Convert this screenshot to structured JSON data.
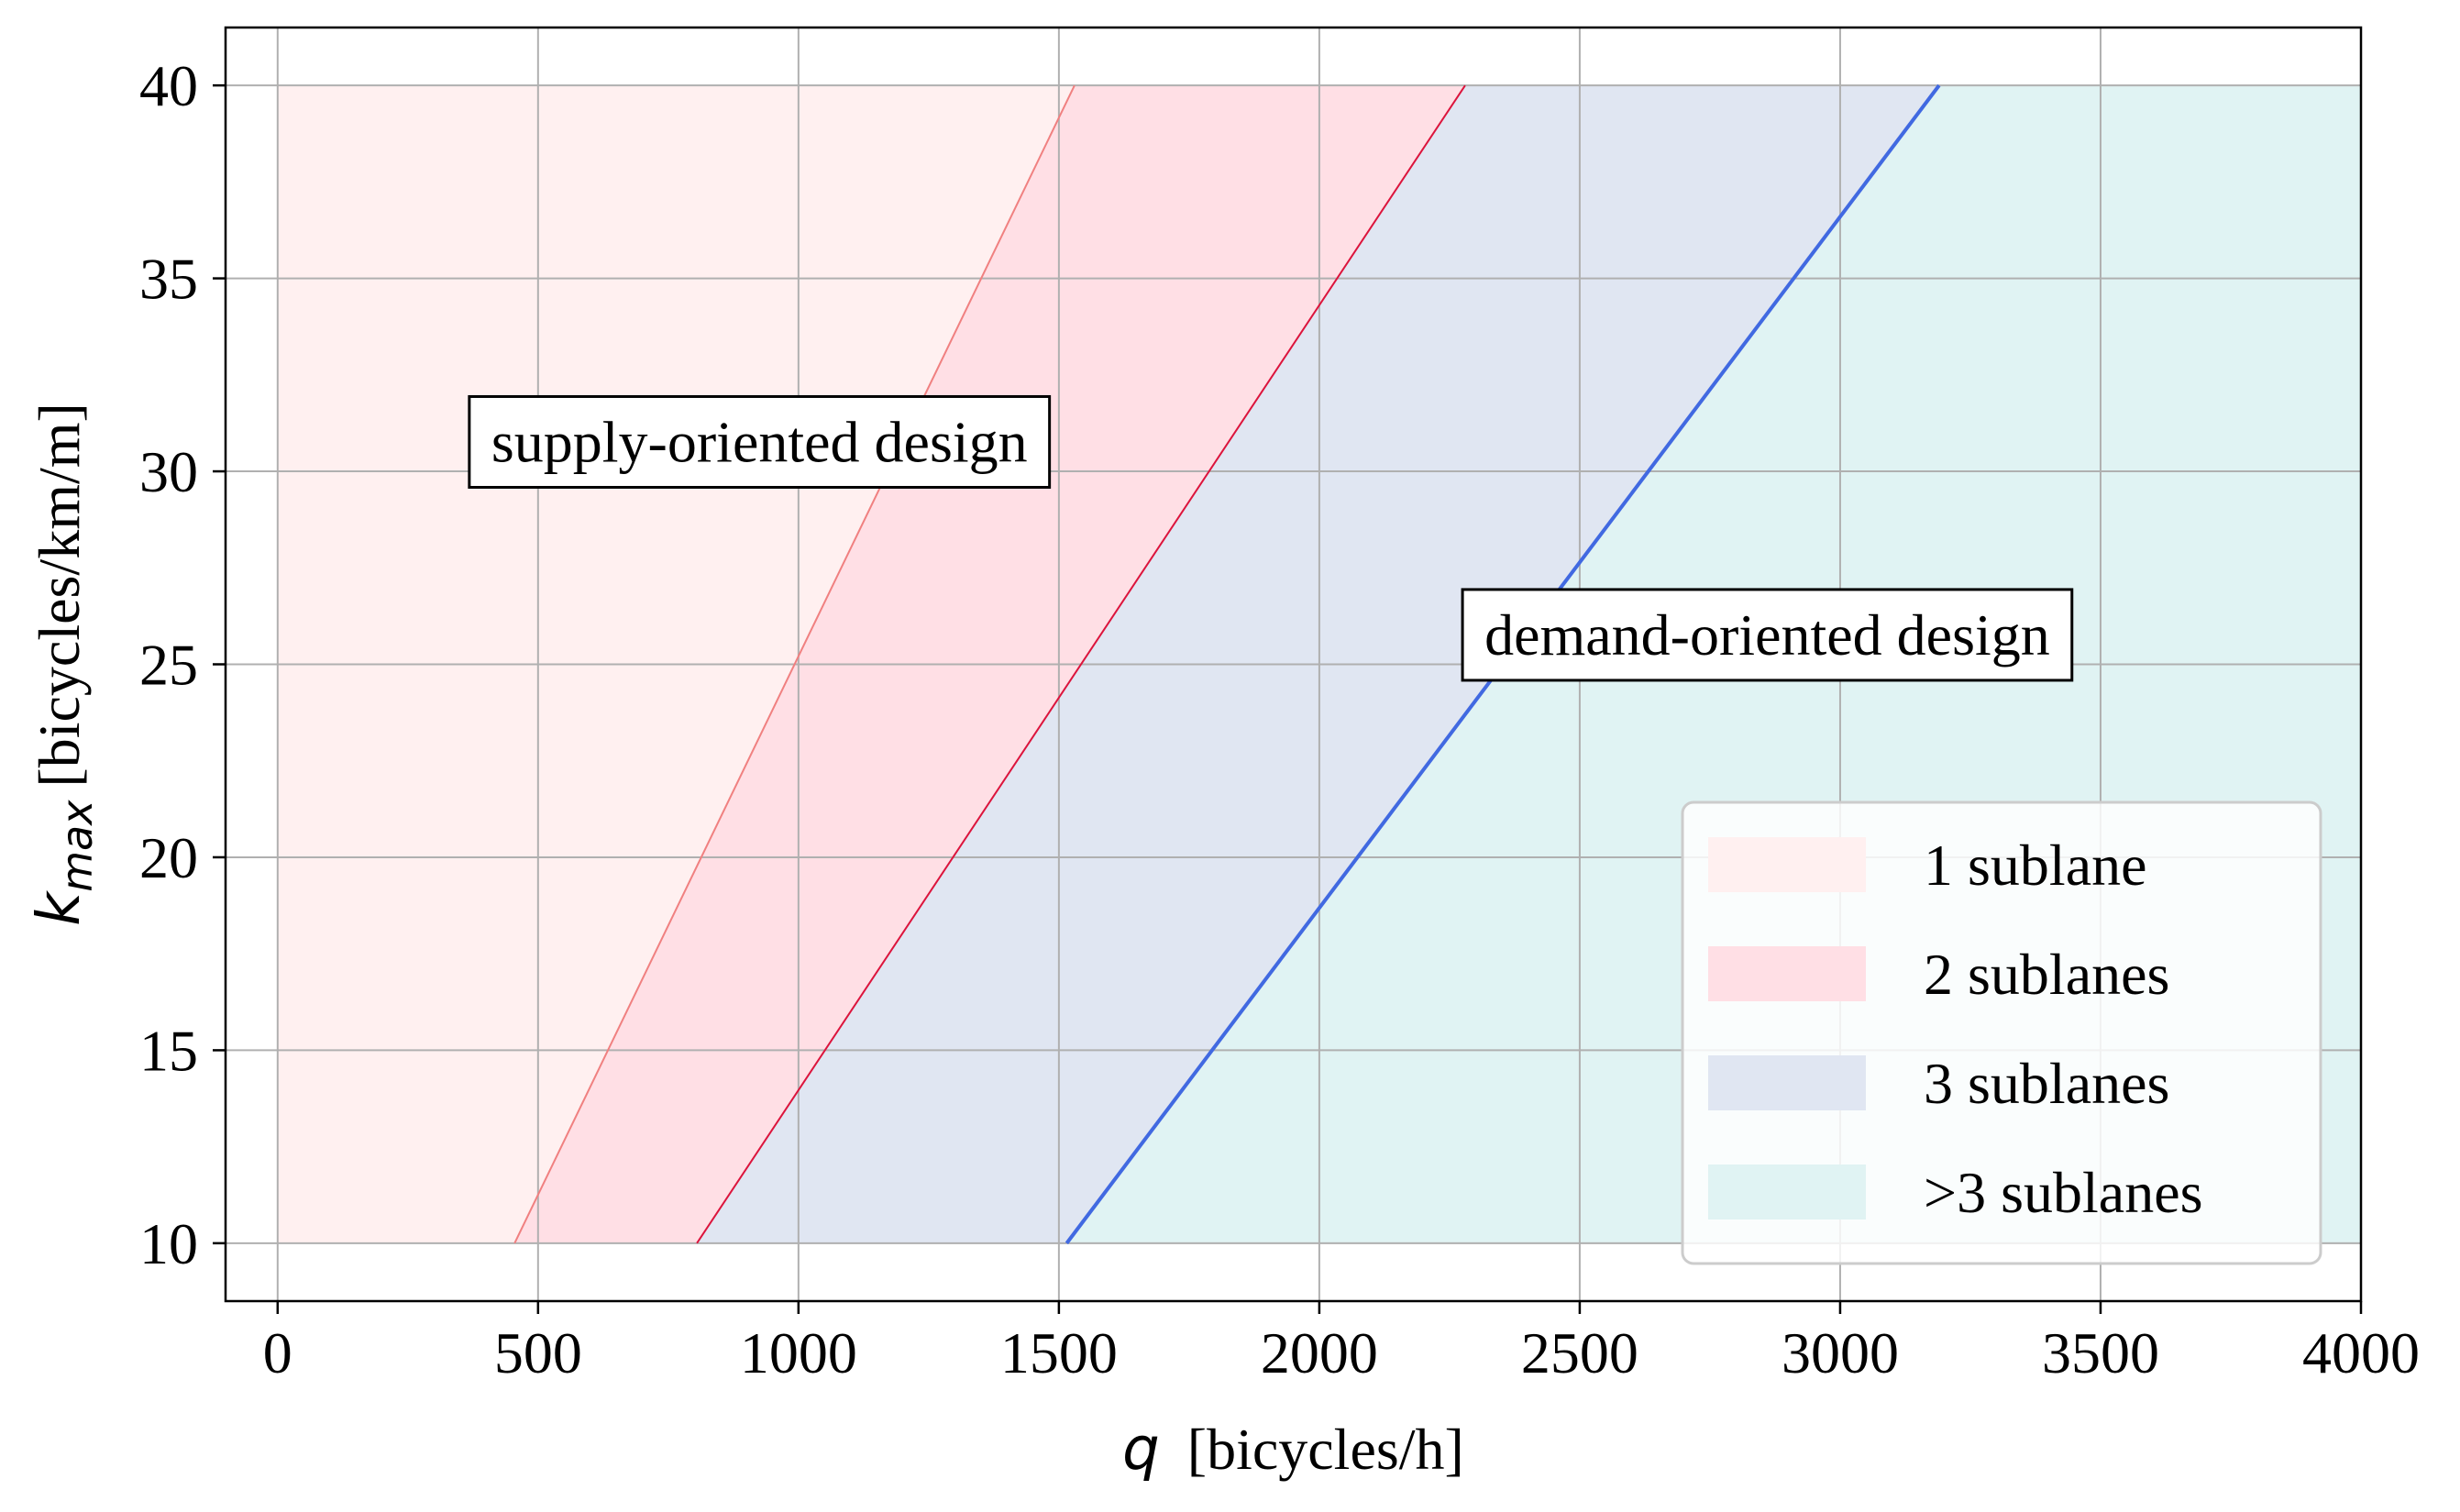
{
  "chart_data": {
    "type": "area",
    "xlim": [
      -100,
      4000
    ],
    "ylim": [
      8.5,
      41.5
    ],
    "x_ticks": [
      0,
      500,
      1000,
      1500,
      2000,
      2500,
      3000,
      3500,
      4000
    ],
    "y_ticks": [
      10,
      15,
      20,
      25,
      30,
      35,
      40
    ],
    "x_tick_labels": [
      "0",
      "500",
      "1000",
      "1500",
      "2000",
      "2500",
      "3000",
      "3500",
      "4000"
    ],
    "y_tick_labels": [
      "10",
      "15",
      "20",
      "25",
      "30",
      "35",
      "40"
    ],
    "xlabel": {
      "symbol": "q",
      "unit": "[bicycles/h]"
    },
    "ylabel": {
      "symbol": "k",
      "subscript": "max",
      "unit": "[bicycles/km/m]"
    },
    "grid": true,
    "boundaries": [
      {
        "color": "#f08080",
        "width": 2,
        "points": [
          [
            455,
            10
          ],
          [
            1530,
            40
          ]
        ]
      },
      {
        "color": "#dc143c",
        "width": 2,
        "points": [
          [
            805,
            10
          ],
          [
            2280,
            40
          ]
        ]
      },
      {
        "color": "#4169e1",
        "width": 4,
        "points": [
          [
            1515,
            10
          ],
          [
            3190,
            40
          ]
        ]
      }
    ],
    "regions": [
      {
        "name": "1 sublane",
        "color": "#fff0f0",
        "from": "axis_start",
        "to_boundary": 0
      },
      {
        "name": "2 sublanes",
        "color": "#ffdfe5",
        "from_boundary": 0,
        "to_boundary": 1
      },
      {
        "name": "3 sublanes",
        "color": "#e0e6f2",
        "from_boundary": 1,
        "to_boundary": 2
      },
      {
        "name": ">3 sublanes",
        "color": "#e0f3f3",
        "from_boundary": 2,
        "to": 4000
      }
    ],
    "region_ymin": 10,
    "region_ymax": 40,
    "legend_position": "lower-right",
    "annotations": [
      {
        "text": "supply-oriented design",
        "x": 925,
        "y": 30.6
      },
      {
        "text": "demand-oriented design",
        "x": 2860,
        "y": 25.6
      }
    ]
  }
}
